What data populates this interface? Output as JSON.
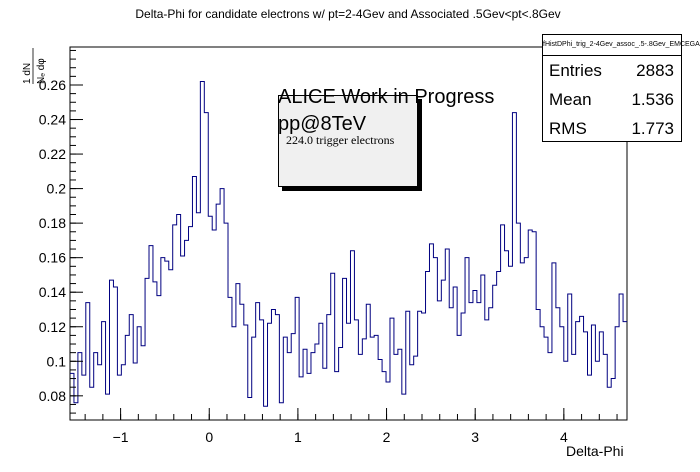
{
  "title": "Delta-Phi for candidate electrons w/ pt=2-4Gev and Associated .5Gev<pt<.8Gev",
  "stats": {
    "name": "fHistDPhi_trig_2-4Gev_assoc_.5-.8Gev_EMCEGA",
    "rows": [
      {
        "label": "Entries",
        "value": "2883"
      },
      {
        "label": "Mean",
        "value": "1.536"
      },
      {
        "label": "RMS",
        "value": "1.773"
      }
    ]
  },
  "annotations": {
    "line1": "ALICE Work in Progress",
    "line2": "pp@8TeV",
    "trigger": "224.0 trigger electrons"
  },
  "chart_data": {
    "type": "histogram",
    "title": "Delta-Phi for candidate electrons w/ pt=2-4Gev and Associated .5Gev<pt<.8Gev",
    "xlabel": "Delta-Phi",
    "ylabel": "1/N_e dN/dφ",
    "xlim": [
      -1.5708,
      4.7124
    ],
    "ylim": [
      0.066,
      0.282
    ],
    "x_ticks": [
      -1,
      0,
      1,
      2,
      3,
      4
    ],
    "y_ticks": [
      0.08,
      0.1,
      0.12,
      0.14,
      0.16,
      0.18,
      0.2,
      0.22,
      0.24,
      0.26
    ],
    "line_color": "#000080",
    "values": [
      0.093,
      0.076,
      0.105,
      0.092,
      0.134,
      0.085,
      0.105,
      0.098,
      0.123,
      0.081,
      0.147,
      0.143,
      0.092,
      0.098,
      0.115,
      0.127,
      0.099,
      0.12,
      0.109,
      0.148,
      0.167,
      0.146,
      0.138,
      0.16,
      0.158,
      0.153,
      0.179,
      0.185,
      0.161,
      0.17,
      0.178,
      0.207,
      0.186,
      0.262,
      0.244,
      0.184,
      0.176,
      0.191,
      0.2,
      0.18,
      0.137,
      0.12,
      0.145,
      0.133,
      0.121,
      0.079,
      0.114,
      0.134,
      0.124,
      0.074,
      0.122,
      0.13,
      0.127,
      0.076,
      0.114,
      0.105,
      0.116,
      0.137,
      0.091,
      0.107,
      0.093,
      0.105,
      0.11,
      0.122,
      0.096,
      0.127,
      0.151,
      0.094,
      0.108,
      0.148,
      0.122,
      0.164,
      0.124,
      0.104,
      0.113,
      0.133,
      0.114,
      0.115,
      0.101,
      0.094,
      0.088,
      0.125,
      0.104,
      0.107,
      0.081,
      0.129,
      0.098,
      0.103,
      0.129,
      0.128,
      0.152,
      0.168,
      0.16,
      0.135,
      0.147,
      0.165,
      0.131,
      0.143,
      0.115,
      0.128,
      0.16,
      0.134,
      0.141,
      0.134,
      0.15,
      0.124,
      0.131,
      0.144,
      0.152,
      0.179,
      0.164,
      0.155,
      0.244,
      0.18,
      0.157,
      0.16,
      0.176,
      0.175,
      0.13,
      0.12,
      0.114,
      0.105,
      0.157,
      0.131,
      0.12,
      0.1,
      0.139,
      0.104,
      0.123,
      0.126,
      0.117,
      0.092,
      0.121,
      0.1,
      0.117,
      0.104,
      0.085,
      0.09,
      0.12,
      0.139,
      0.123
    ]
  }
}
